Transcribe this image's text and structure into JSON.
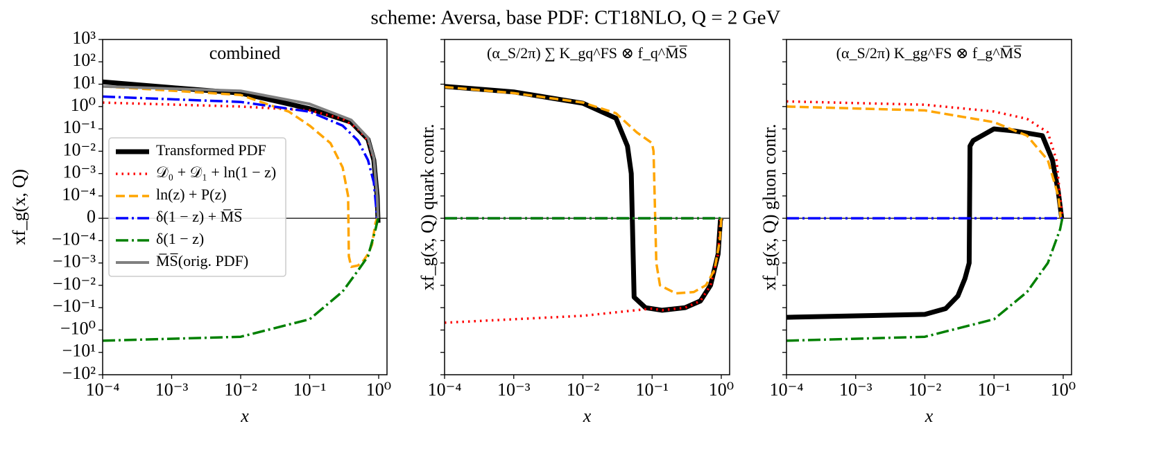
{
  "title": "scheme: Aversa, base PDF: CT18NLO, Q = 2 GeV",
  "chart_data": [
    {
      "type": "line",
      "title": "combined",
      "xlabel": "x",
      "ylabel": "xf_g(x, Q)",
      "xscale": "log",
      "yscale": "symlog",
      "linthresh": 0.0001,
      "xlim": [
        0.0001,
        1.32
      ],
      "ylim": [
        -100,
        1000
      ],
      "legend": "center left",
      "ytick_labels": true,
      "xticks": [
        {
          "value": 0.0001,
          "label": "10⁻⁴"
        },
        {
          "value": 0.001,
          "label": "10⁻³"
        },
        {
          "value": 0.01,
          "label": "10⁻²"
        },
        {
          "value": 0.1,
          "label": "10⁻¹"
        },
        {
          "value": 1,
          "label": "10⁰"
        }
      ],
      "yticks": [
        {
          "value": 1000,
          "label": "10³"
        },
        {
          "value": 100,
          "label": "10²"
        },
        {
          "value": 10,
          "label": "10¹"
        },
        {
          "value": 1,
          "label": "10⁰"
        },
        {
          "value": 0.1,
          "label": "10⁻¹"
        },
        {
          "value": 0.01,
          "label": "10⁻²"
        },
        {
          "value": 0.001,
          "label": "10⁻³"
        },
        {
          "value": 0.0001,
          "label": "10⁻⁴"
        },
        0,
        {
          "value": -0.0001,
          "label": "−10⁻⁴"
        },
        {
          "value": -0.001,
          "label": "−10⁻³"
        },
        {
          "value": -0.01,
          "label": "−10⁻²"
        },
        {
          "value": -0.1,
          "label": "−10⁻¹"
        },
        {
          "value": -1,
          "label": "−10⁰"
        },
        {
          "value": -10,
          "label": "−10¹"
        },
        {
          "value": -100,
          "label": "−10²"
        }
      ],
      "series": [
        {
          "name": "Transformed PDF",
          "color": "#000000",
          "linestyle": "solid",
          "width": 7,
          "x": [
            0.0001,
            0.001,
            0.01,
            0.1,
            0.4,
            0.7,
            0.85,
            0.95,
            0.98
          ],
          "values": [
            12.6,
            7,
            4,
            0.8,
            0.2,
            0.034,
            0.004,
            0.0001,
            -2e-05
          ]
        },
        {
          "name": "𝒟₀ + 𝒟₁ + ln(1 − z)",
          "color": "#ff0000",
          "linestyle": "dotted",
          "width": 3.5,
          "x": [
            0.0001,
            0.01,
            0.1,
            0.3,
            0.5,
            0.7,
            0.85,
            0.95,
            0.98
          ],
          "values": [
            1.5,
            1.0,
            0.67,
            0.28,
            0.1,
            0.03,
            0.004,
            0.0001,
            0
          ]
        },
        {
          "name": "ln(z) + P(z)",
          "color": "#ffa500",
          "linestyle": "dashed",
          "width": 3.5,
          "x": [
            0.0001,
            0.01,
            0.05,
            0.1,
            0.2,
            0.3,
            0.36,
            0.37,
            0.4,
            0.5,
            0.6,
            0.7,
            0.8,
            0.9,
            0.95
          ],
          "values": [
            8,
            3.3,
            0.59,
            0.14,
            0.023,
            0.0019,
            0.0001,
            -0.0005,
            -0.0015,
            -0.0013,
            -0.0008,
            -0.0004,
            -0.00015,
            -2e-05,
            0
          ]
        },
        {
          "name": "δ(1 − z) + M̅S̅",
          "color": "#0000ff",
          "linestyle": "dashdot",
          "width": 3.5,
          "x": [
            0.0001,
            0.01,
            0.1,
            0.3,
            0.5,
            0.7,
            0.85,
            0.95
          ],
          "values": [
            2.8,
            1.6,
            0.59,
            0.14,
            0.03,
            0.004,
            0.0004,
            0
          ]
        },
        {
          "name": "δ(1 − z)",
          "color": "#008000",
          "linestyle": "dashdot",
          "width": 3.5,
          "x": [
            0.0001,
            0.01,
            0.1,
            0.3,
            0.5,
            0.7,
            0.9,
            0.98
          ],
          "values": [
            -3,
            -2,
            -0.33,
            -0.019,
            -0.0022,
            -0.0005,
            -5e-05,
            0
          ]
        },
        {
          "name": "M̅S̅(orig. PDF)",
          "color": "#808080",
          "linestyle": "solid",
          "width": 4,
          "x": [
            0.0001,
            0.01,
            0.1,
            0.4,
            0.7,
            0.85,
            0.95,
            0.98
          ],
          "values": [
            8,
            5,
            1.3,
            0.25,
            0.04,
            0.005,
            0.0001,
            0
          ]
        }
      ]
    },
    {
      "type": "line",
      "title": "(α_S/2π) ∑ K_gq^FS ⊗ f_q^M̅S̅",
      "xlabel": "x",
      "ylabel": "xf_g(x, Q)  quark contr.",
      "xscale": "log",
      "yscale": "symlog",
      "linthresh": 0.0001,
      "xlim": [
        0.0001,
        1.32
      ],
      "ylim": [
        -100,
        1000
      ],
      "ytick_labels": false,
      "xticks": [
        {
          "value": 0.0001,
          "label": "10⁻⁴"
        },
        {
          "value": 0.001,
          "label": "10⁻³"
        },
        {
          "value": 0.01,
          "label": "10⁻²"
        },
        {
          "value": 0.1,
          "label": "10⁻¹"
        },
        {
          "value": 1,
          "label": "10⁰"
        }
      ],
      "yticks": [
        1000,
        100,
        10,
        1,
        0.1,
        0.01,
        0.001,
        0.0001,
        0,
        -0.0001,
        -0.001,
        -0.01,
        -0.1,
        -1,
        -10,
        -100
      ],
      "series": [
        {
          "color": "#000000",
          "linestyle": "solid",
          "width": 7,
          "x": [
            0.0001,
            0.001,
            0.01,
            0.03,
            0.044,
            0.05,
            0.055,
            0.08,
            0.14,
            0.3,
            0.5,
            0.7,
            0.9,
            0.97,
            1.0
          ],
          "values": [
            8,
            4.5,
            1.4,
            0.3,
            0.017,
            0.001,
            -0.034,
            -0.1,
            -0.13,
            -0.1,
            -0.05,
            -0.01,
            -0.0004,
            -1e-05,
            0
          ]
        },
        {
          "color": "#ff0000",
          "linestyle": "dotted",
          "width": 3.5,
          "x": [
            0.0001,
            0.01,
            0.1,
            0.14,
            0.3,
            0.5,
            0.7,
            0.9,
            0.97,
            1.0
          ],
          "values": [
            -0.47,
            -0.23,
            -0.11,
            -0.13,
            -0.1,
            -0.05,
            -0.01,
            -0.0004,
            -1e-05,
            0
          ]
        },
        {
          "color": "#ffa500",
          "linestyle": "dashed",
          "width": 3.5,
          "x": [
            0.0001,
            0.001,
            0.01,
            0.03,
            0.06,
            0.1,
            0.105,
            0.115,
            0.13,
            0.22,
            0.4,
            0.6,
            0.8,
            0.95,
            1.0
          ],
          "values": [
            7.5,
            4,
            1.5,
            0.5,
            0.07,
            0.023,
            0.01,
            -0.001,
            -0.01,
            -0.023,
            -0.02,
            -0.01,
            -0.002,
            -0.0001,
            0
          ]
        },
        {
          "color": "#0000ff",
          "linestyle": "dashdot",
          "width": 3.5,
          "x": [
            0.0001,
            1.0
          ],
          "values": [
            0,
            0
          ]
        },
        {
          "color": "#008000",
          "linestyle": "dashdot",
          "width": 3.5,
          "x": [
            0.0001,
            1.0
          ],
          "values": [
            0,
            0
          ]
        }
      ]
    },
    {
      "type": "line",
      "title": "(α_S/2π) K_gg^FS ⊗ f_g^M̅S̅",
      "xlabel": "x",
      "ylabel": "xf_g(x, Q)  gluon contr.",
      "xscale": "log",
      "yscale": "symlog",
      "linthresh": 0.0001,
      "xlim": [
        0.0001,
        1.32
      ],
      "ylim": [
        -100,
        1000
      ],
      "ytick_labels": false,
      "xticks": [
        {
          "value": 0.0001,
          "label": "10⁻⁴"
        },
        {
          "value": 0.001,
          "label": "10⁻³"
        },
        {
          "value": 0.01,
          "label": "10⁻²"
        },
        {
          "value": 0.1,
          "label": "10⁻¹"
        },
        {
          "value": 1,
          "label": "10⁰"
        }
      ],
      "yticks": [
        1000,
        100,
        10,
        1,
        0.1,
        0.01,
        0.001,
        0.0001,
        0,
        -0.0001,
        -0.001,
        -0.01,
        -0.1,
        -1,
        -10,
        -100
      ],
      "series": [
        {
          "color": "#000000",
          "linestyle": "solid",
          "width": 7,
          "x": [
            0.0001,
            0.01,
            0.02,
            0.03,
            0.038,
            0.0437,
            0.045,
            0.05,
            0.1,
            0.2,
            0.5,
            0.7,
            0.85,
            0.95
          ],
          "values": [
            -0.27,
            -0.2,
            -0.11,
            -0.03,
            -0.005,
            -0.001,
            0.017,
            0.03,
            0.1,
            0.08,
            0.05,
            0.004,
            0.00015,
            0
          ]
        },
        {
          "color": "#ff0000",
          "linestyle": "dotted",
          "width": 3.5,
          "x": [
            0.0001,
            0.01,
            0.1,
            0.3,
            0.6,
            0.8,
            0.9,
            0.97
          ],
          "values": [
            1.7,
            1.2,
            0.6,
            0.28,
            0.07,
            0.004,
            0.0001,
            0
          ]
        },
        {
          "color": "#ffa500",
          "linestyle": "dashed",
          "width": 3.5,
          "x": [
            0.0001,
            0.01,
            0.1,
            0.3,
            0.6,
            0.85,
            0.92
          ],
          "values": [
            1.0,
            0.67,
            0.2,
            0.05,
            0.004,
            0.0001,
            0
          ]
        },
        {
          "color": "#0000ff",
          "linestyle": "dashdot",
          "width": 3.5,
          "x": [
            0.0001,
            1.0
          ],
          "values": [
            0,
            0
          ]
        },
        {
          "color": "#008000",
          "linestyle": "dashdot",
          "width": 3.5,
          "x": [
            0.0001,
            0.01,
            0.1,
            0.3,
            0.6,
            0.9,
            0.97
          ],
          "values": [
            -3,
            -2,
            -0.33,
            -0.02,
            -0.001,
            -5e-05,
            0
          ]
        }
      ]
    }
  ]
}
